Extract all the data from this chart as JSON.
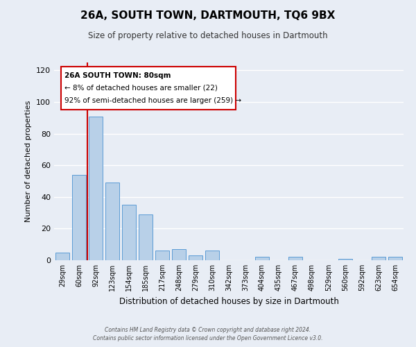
{
  "title": "26A, SOUTH TOWN, DARTMOUTH, TQ6 9BX",
  "subtitle": "Size of property relative to detached houses in Dartmouth",
  "xlabel": "Distribution of detached houses by size in Dartmouth",
  "ylabel": "Number of detached properties",
  "bar_labels": [
    "29sqm",
    "60sqm",
    "92sqm",
    "123sqm",
    "154sqm",
    "185sqm",
    "217sqm",
    "248sqm",
    "279sqm",
    "310sqm",
    "342sqm",
    "373sqm",
    "404sqm",
    "435sqm",
    "467sqm",
    "498sqm",
    "529sqm",
    "560sqm",
    "592sqm",
    "623sqm",
    "654sqm"
  ],
  "bar_values": [
    5,
    54,
    91,
    49,
    35,
    29,
    6,
    7,
    3,
    6,
    0,
    0,
    2,
    0,
    2,
    0,
    0,
    1,
    0,
    2,
    2
  ],
  "bar_color": "#b8d0e8",
  "bar_edge_color": "#5b9bd5",
  "ylim": [
    0,
    125
  ],
  "yticks": [
    0,
    20,
    40,
    60,
    80,
    100,
    120
  ],
  "vline_color": "#cc0000",
  "annotation_title": "26A SOUTH TOWN: 80sqm",
  "annotation_line1": "← 8% of detached houses are smaller (22)",
  "annotation_line2": "92% of semi-detached houses are larger (259) →",
  "annotation_box_color": "#cc0000",
  "footer_line1": "Contains HM Land Registry data © Crown copyright and database right 2024.",
  "footer_line2": "Contains public sector information licensed under the Open Government Licence v3.0.",
  "background_color": "#e8edf5",
  "plot_bg_color": "#e8edf5",
  "grid_color": "#ffffff"
}
